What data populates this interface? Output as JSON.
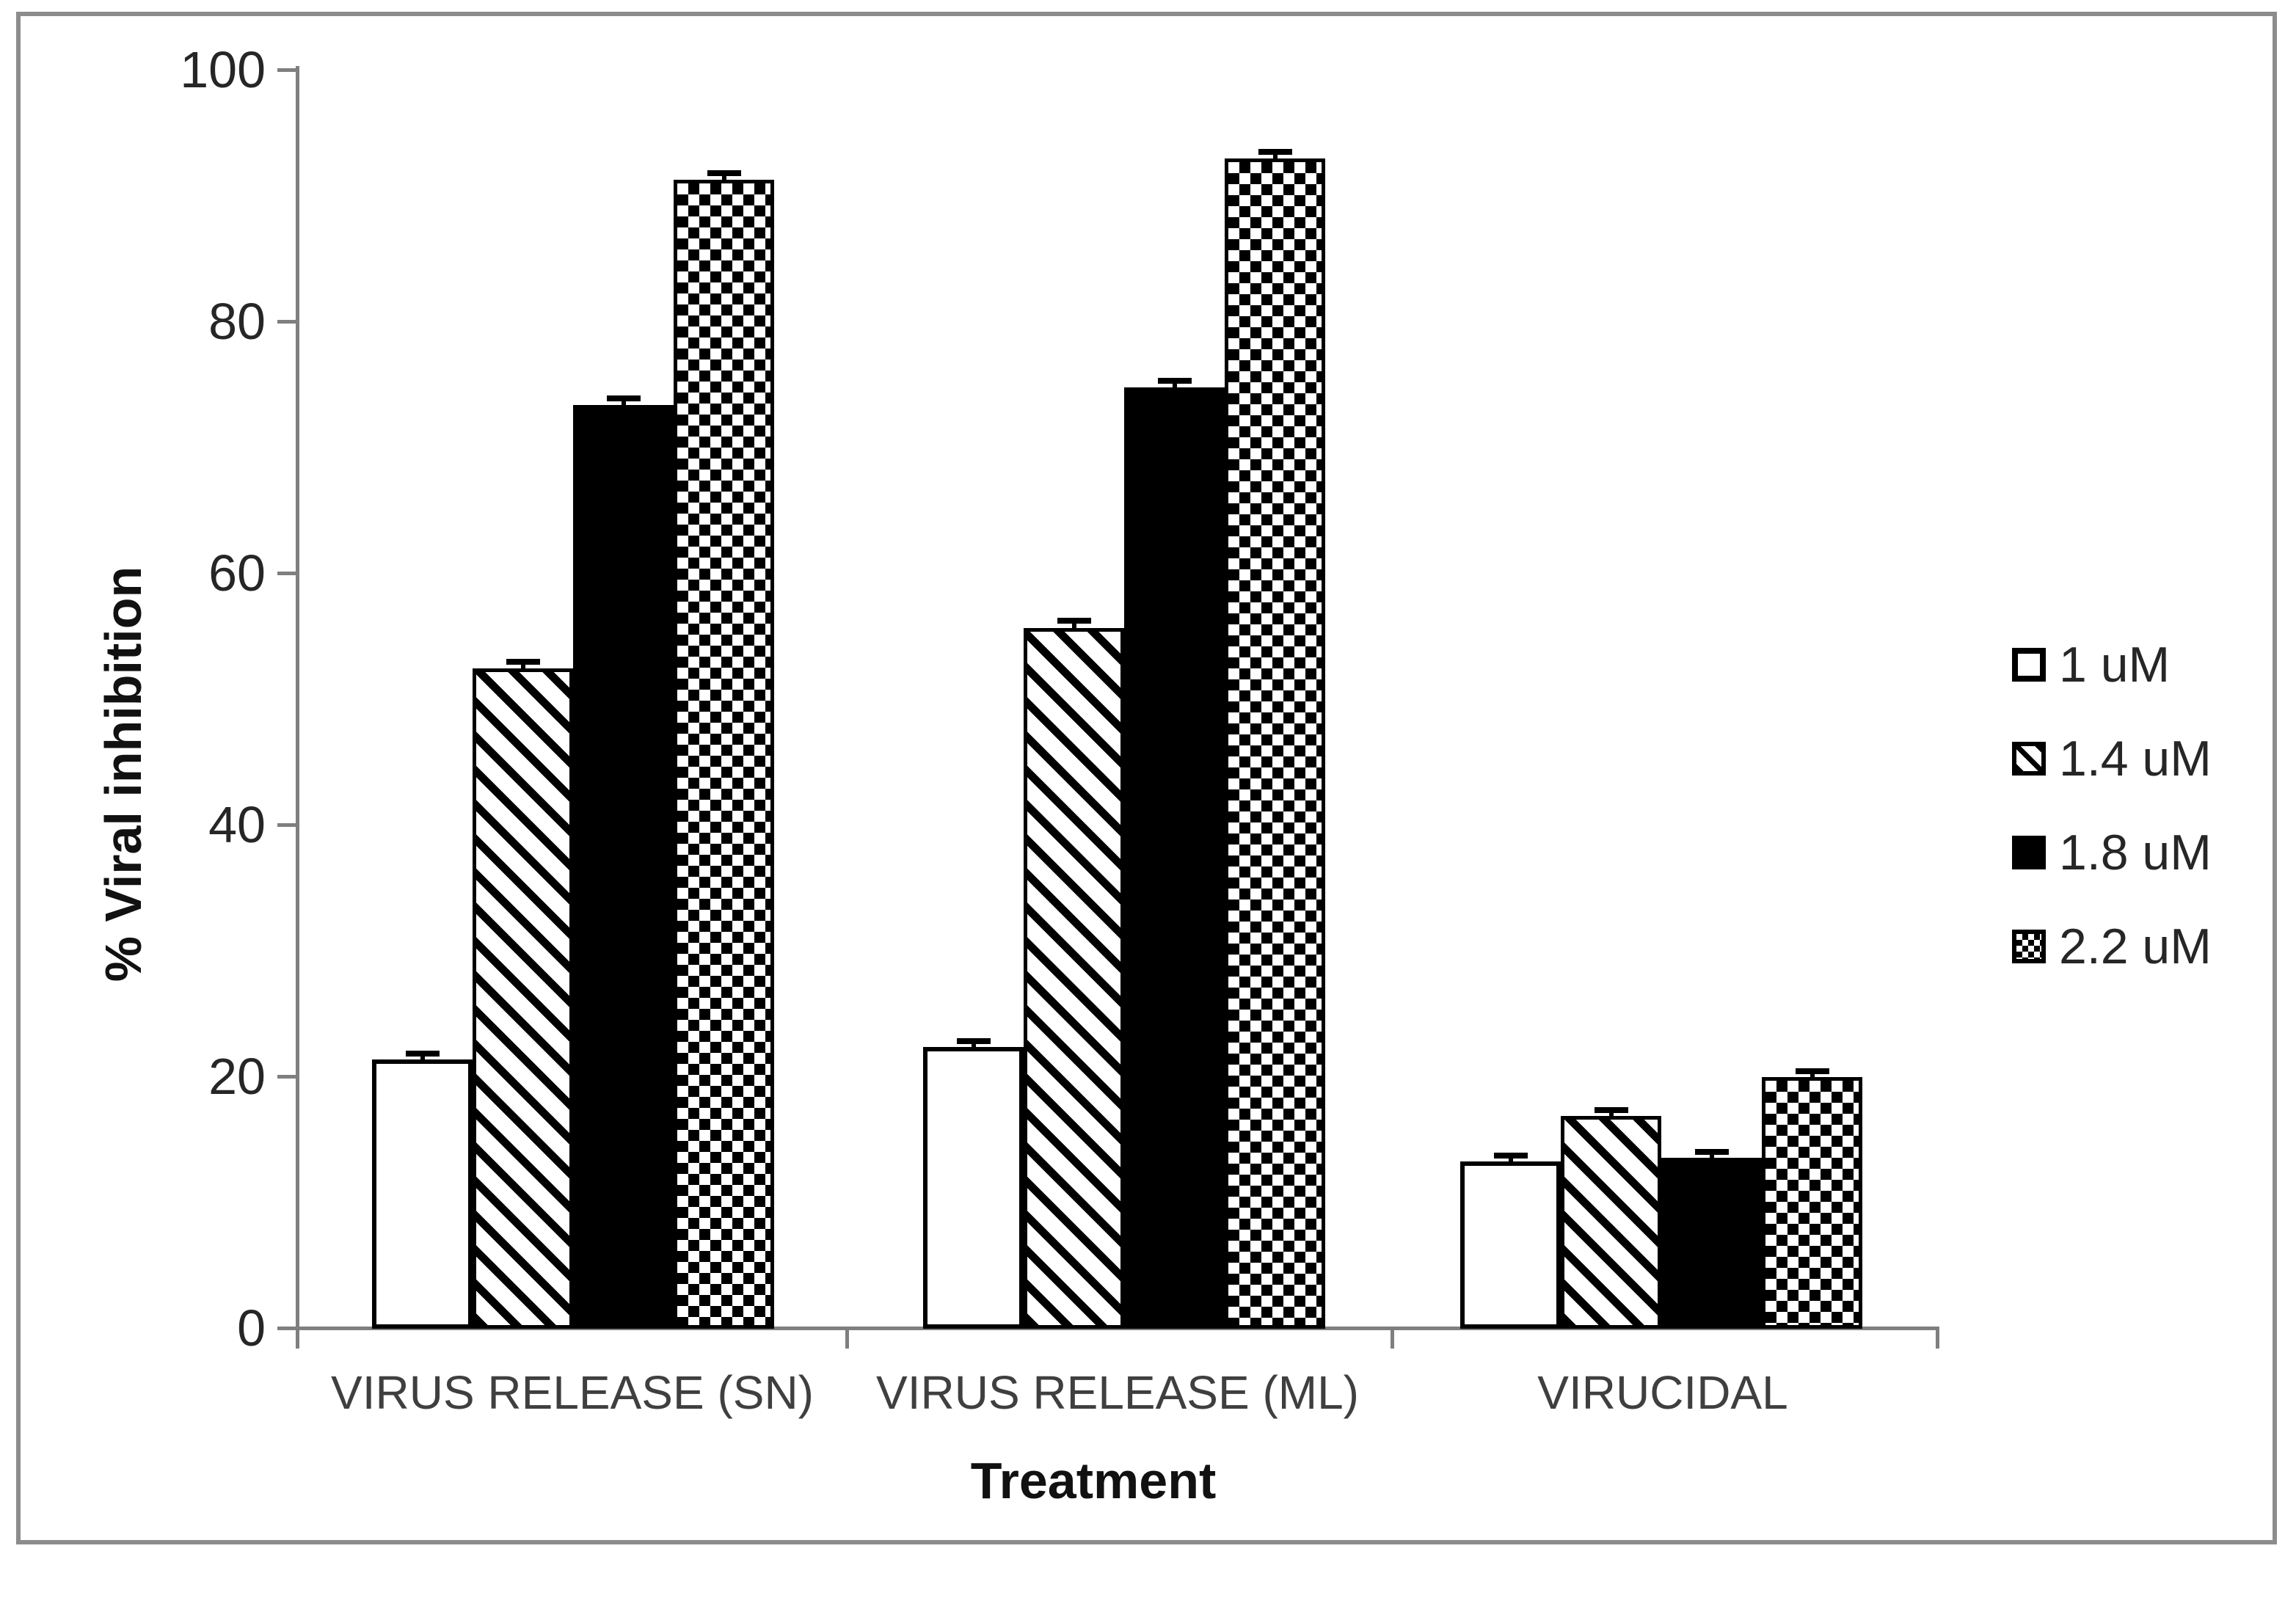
{
  "figure": {
    "background": "#ffffff",
    "border_color": "#8c8c8c",
    "axis_color": "#7f7f7f",
    "text_color": "#262626",
    "bar_outline_color": "#000000"
  },
  "chart_data": {
    "type": "bar",
    "title": "",
    "xlabel": "Treatment",
    "ylabel": "% Viral inhibition",
    "categories": [
      "VIRUS RELEASE (SN)",
      "VIRUS RELEASE (ML)",
      "VIRUCIDAL"
    ],
    "series": [
      {
        "name": "1 uM",
        "pattern": "open",
        "values": [
          21.4,
          22.4,
          13.3
        ],
        "errors": [
          0.4,
          0.4,
          0.4
        ]
      },
      {
        "name": "1.4 uM",
        "pattern": "diagonal-hatch",
        "values": [
          52.5,
          55.7,
          16.9
        ],
        "errors": [
          0.5,
          0.6,
          0.4
        ]
      },
      {
        "name": "1.8 uM",
        "pattern": "solid-black",
        "values": [
          73.4,
          74.8,
          13.6
        ],
        "errors": [
          0.5,
          0.5,
          0.4
        ]
      },
      {
        "name": "2.2 uM",
        "pattern": "checkerboard",
        "values": [
          91.3,
          93.0,
          20.0
        ],
        "errors": [
          0.5,
          0.5,
          0.4
        ]
      }
    ],
    "ylim": [
      0,
      100
    ],
    "yticks": [
      0,
      20,
      40,
      60,
      80,
      100
    ],
    "grid": false,
    "error_bars": true,
    "legend_position": "right"
  }
}
